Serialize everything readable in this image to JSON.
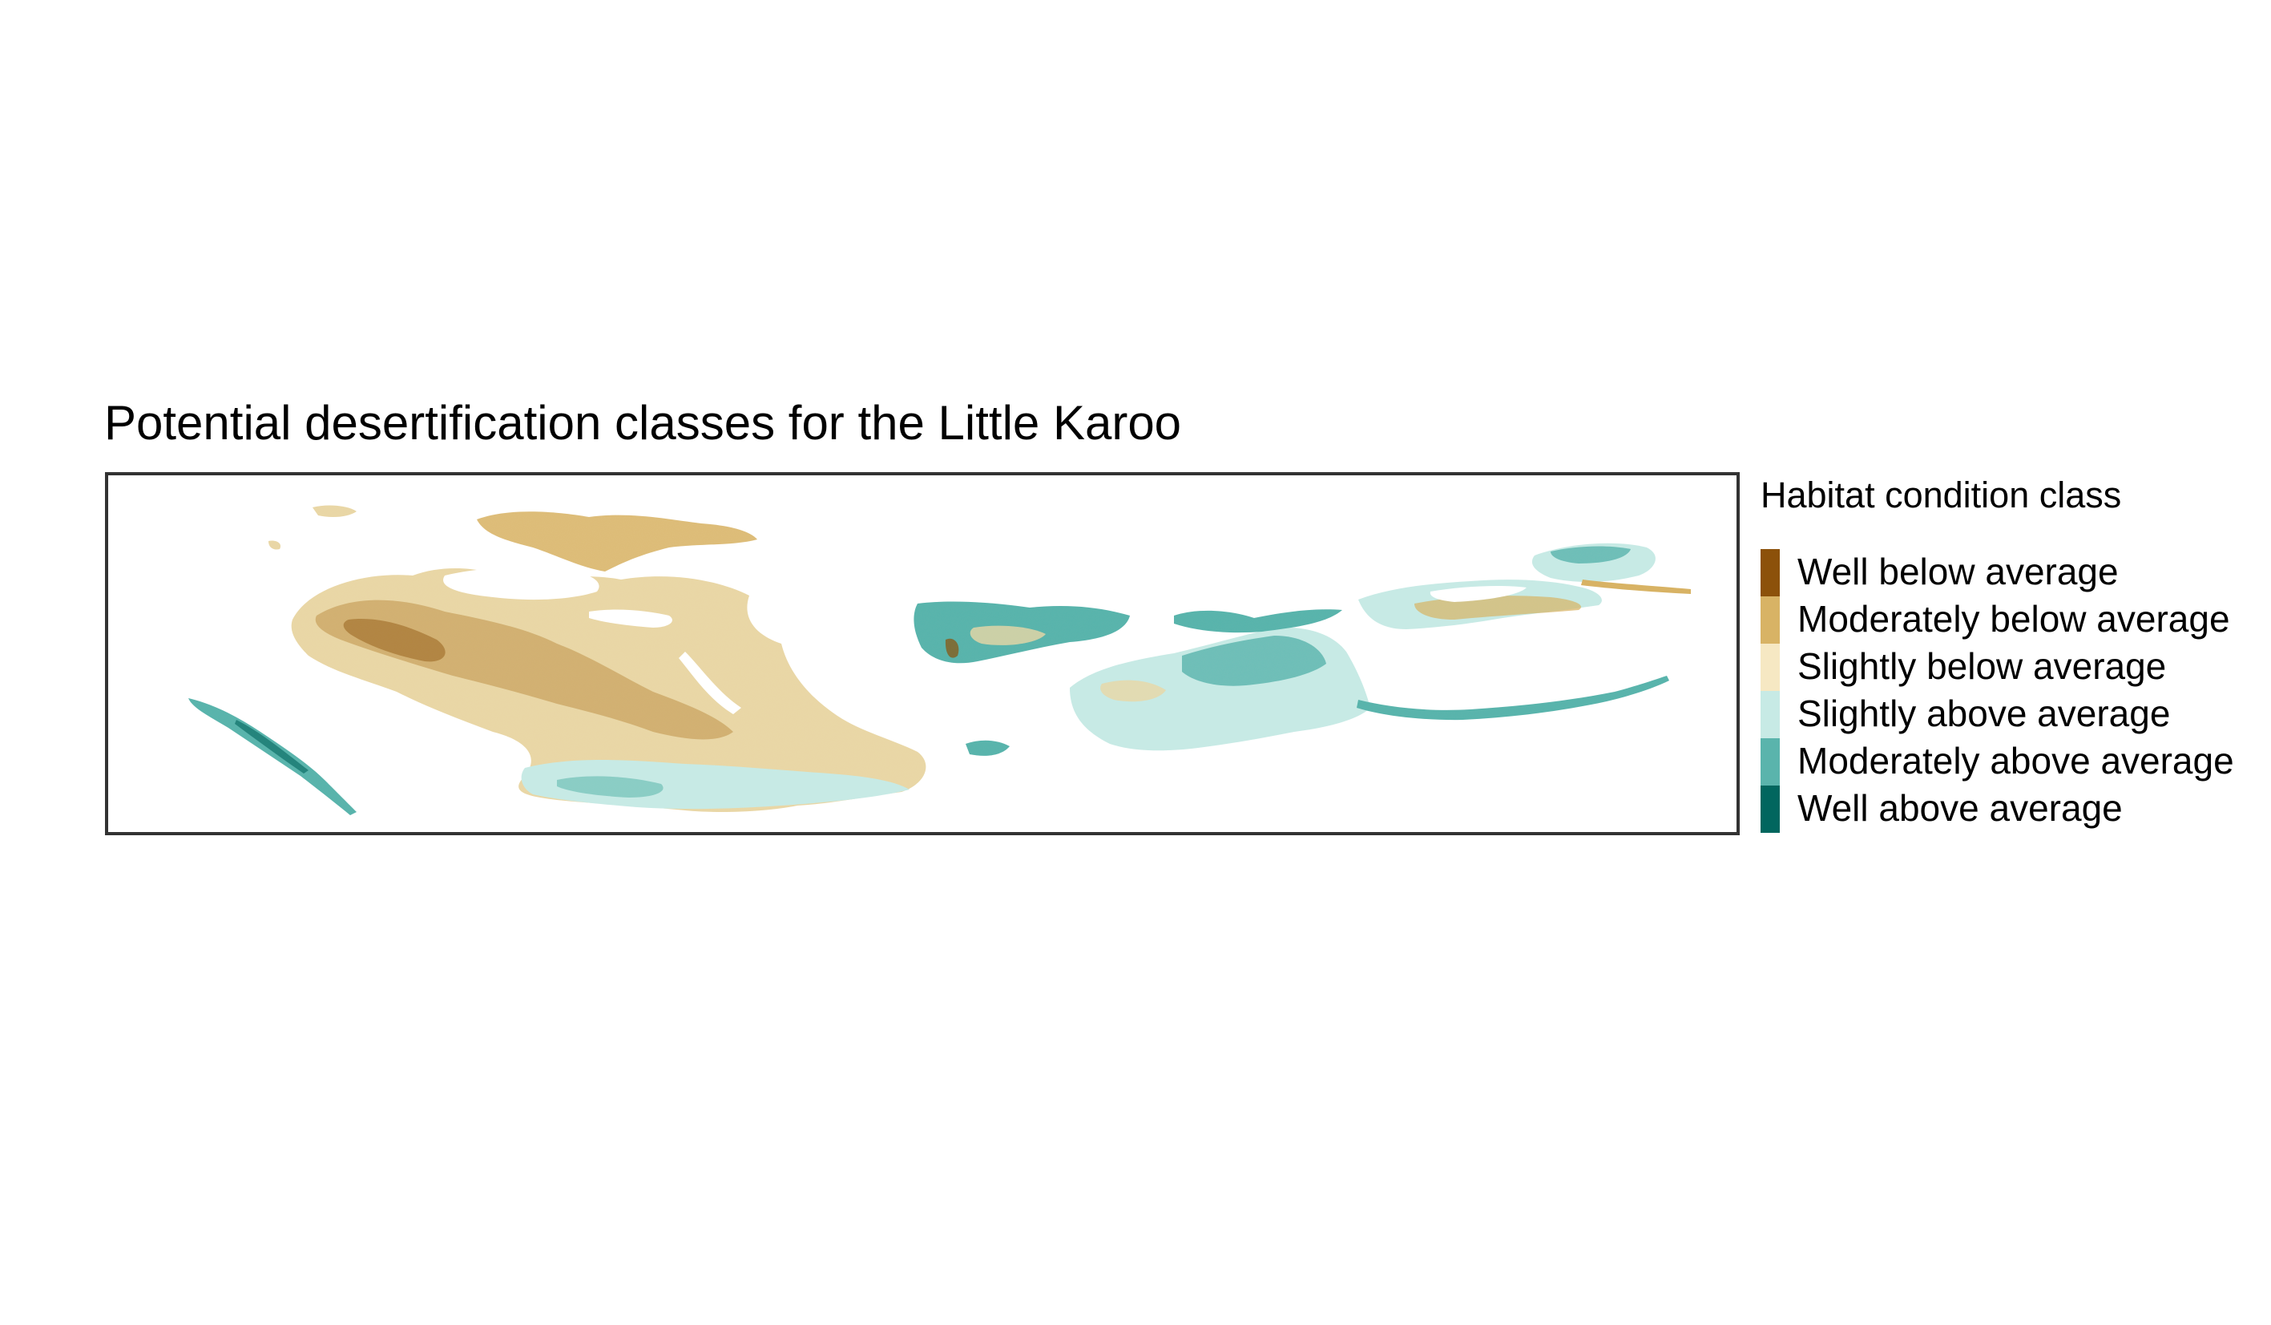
{
  "title": "Potential desertification classes for the Little Karoo",
  "legend": {
    "title": "Habitat condition class",
    "items": [
      {
        "label": "Well below average",
        "color": "#8c510a"
      },
      {
        "label": "Moderately below average",
        "color": "#d8b365"
      },
      {
        "label": "Slightly below average",
        "color": "#f6e8c3"
      },
      {
        "label": "Slightly above average",
        "color": "#c7eae5"
      },
      {
        "label": "Moderately above average",
        "color": "#5ab4ac"
      },
      {
        "label": "Well above average",
        "color": "#01665e"
      }
    ]
  },
  "map": {
    "background": "#ffffff",
    "frame_color": "#333333"
  }
}
